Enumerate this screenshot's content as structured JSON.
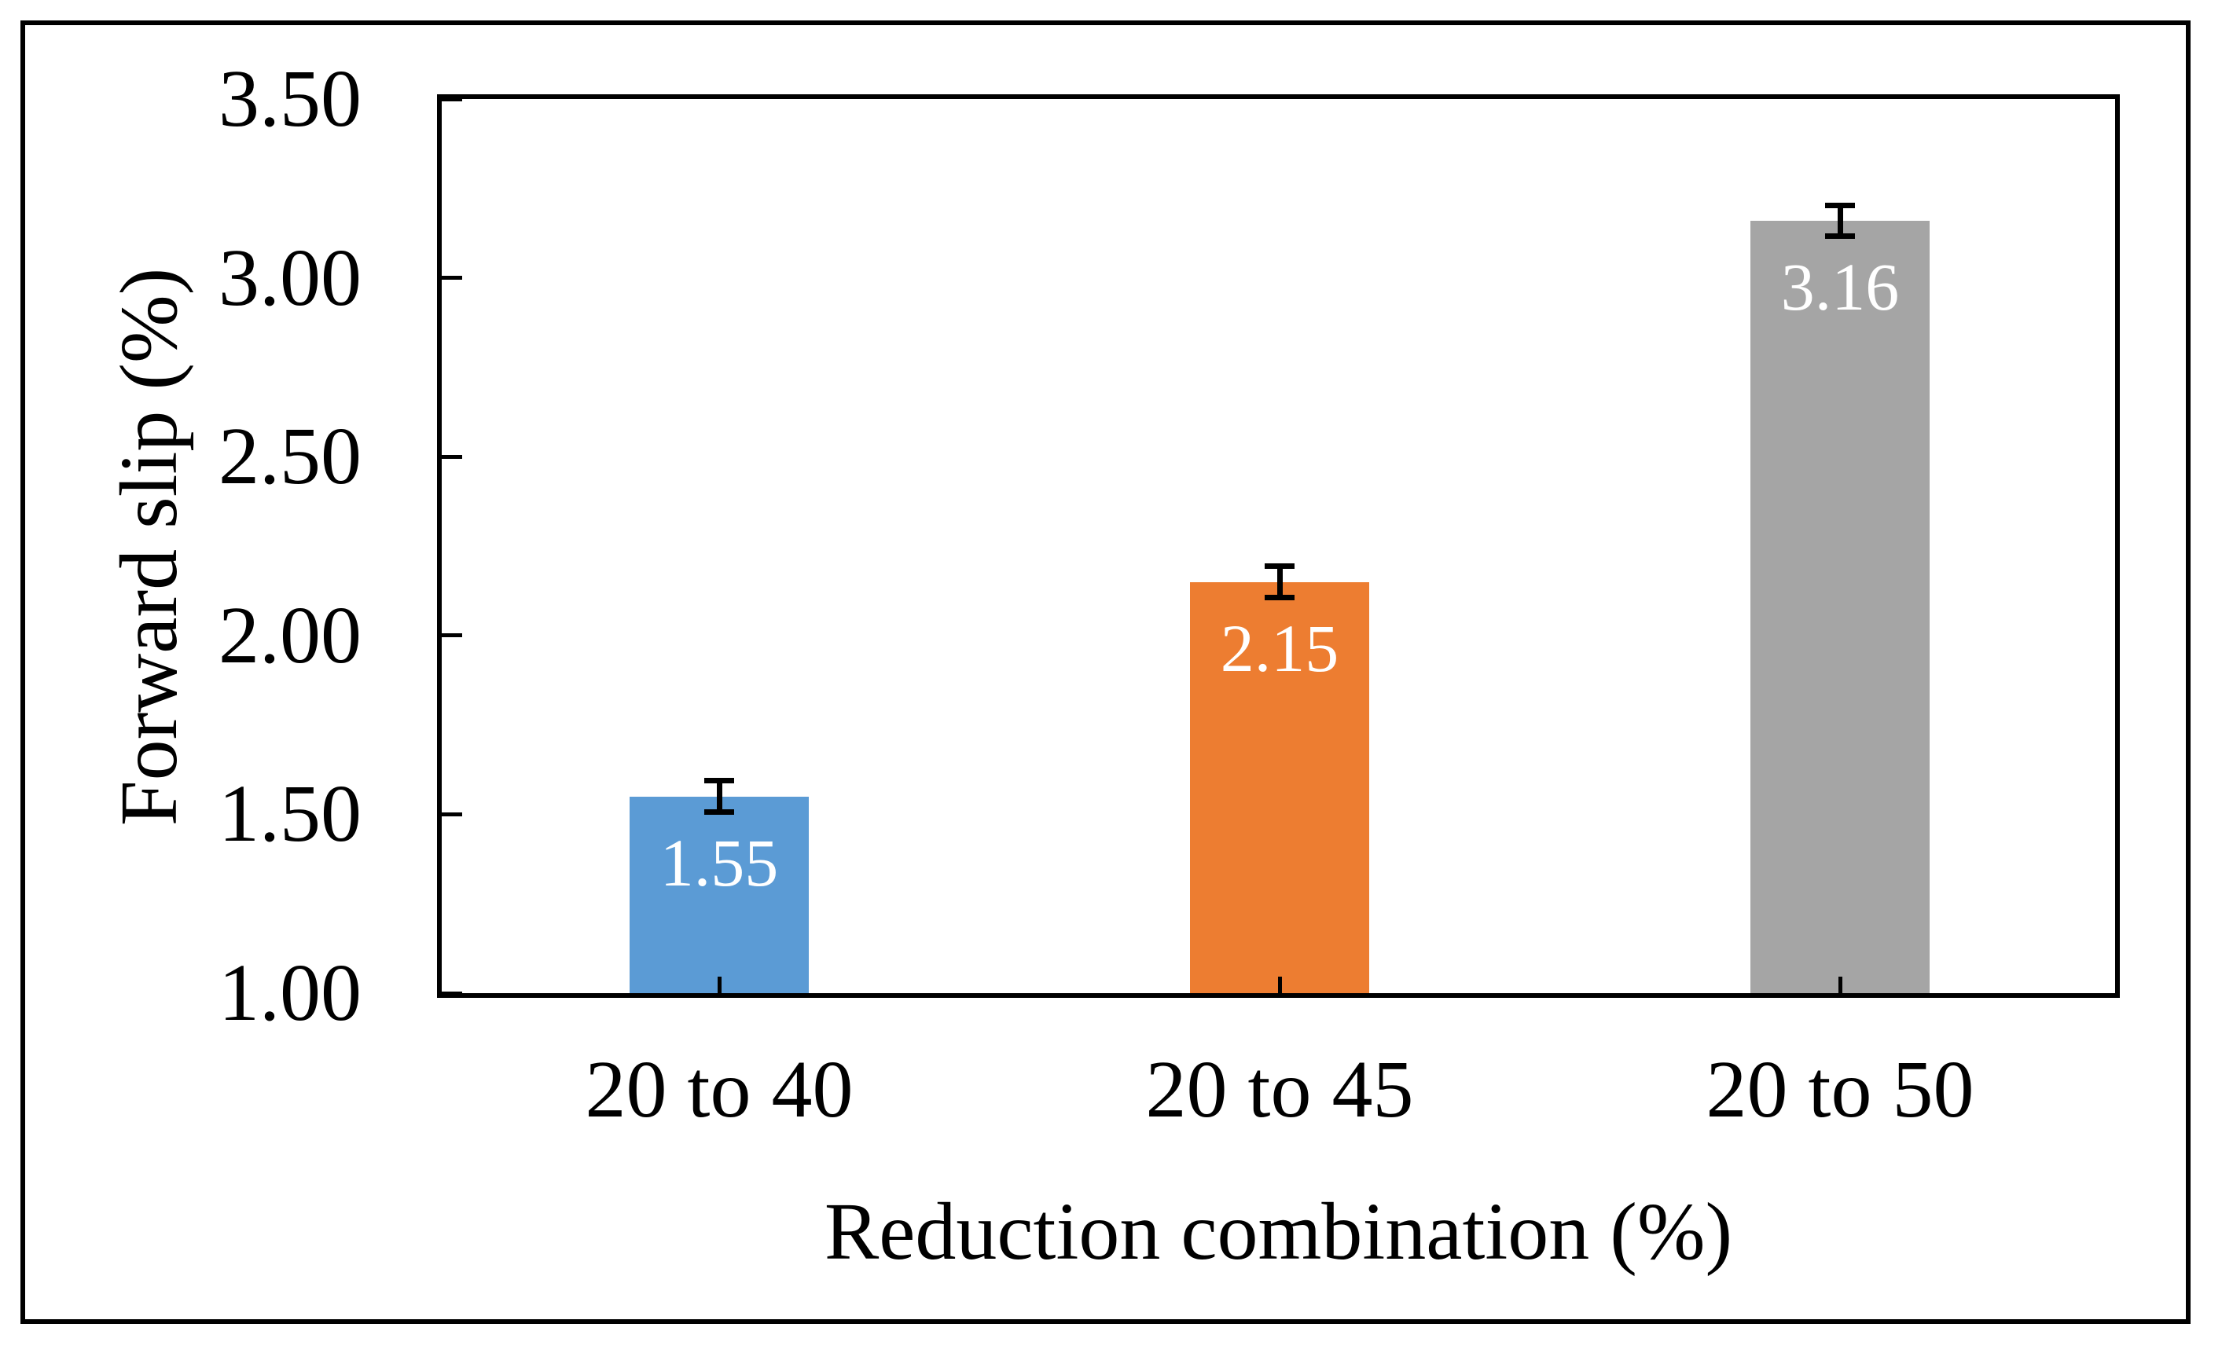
{
  "figure": {
    "background_color": "#ffffff",
    "frame_border_color": "#000000",
    "axis_color": "#000000"
  },
  "chart_data": {
    "type": "bar",
    "title": "",
    "xlabel": "Reduction combination (%)",
    "ylabel": "Forward slip (%)",
    "categories": [
      "20 to 40",
      "20 to 45",
      "20 to 50"
    ],
    "values": [
      1.55,
      2.15,
      3.16
    ],
    "data_labels": [
      "1.55",
      "2.15",
      "3.16"
    ],
    "data_label_color": "#ffffff",
    "error_bars": [
      0.04,
      0.04,
      0.04
    ],
    "error_bar_color": "#000000",
    "bar_colors": [
      "#5B9BD5",
      "#ED7D31",
      "#A5A5A5"
    ],
    "ylim": [
      1.0,
      3.5
    ],
    "yticks": [
      "1.00",
      "1.50",
      "2.00",
      "2.50",
      "3.00",
      "3.50"
    ],
    "ytick_values": [
      1.0,
      1.5,
      2.0,
      2.5,
      3.0,
      3.5
    ],
    "grid": false,
    "legend_position": "none",
    "plot_border": true,
    "tick_direction": "in"
  }
}
